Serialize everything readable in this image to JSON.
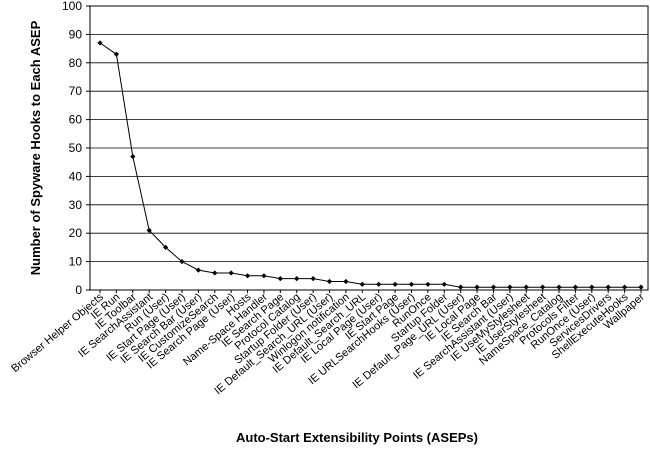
{
  "chart_data": {
    "type": "line",
    "title": "",
    "xlabel": "Auto-Start Extensibility Points (ASEPs)",
    "ylabel": "Number of Spyware Hooks to Each ASEP",
    "ylim": [
      0,
      100
    ],
    "yticks": [
      0,
      10,
      20,
      30,
      40,
      50,
      60,
      70,
      80,
      90,
      100
    ],
    "grid": "y-major",
    "legend": "none",
    "categories": [
      "Browser Helper Objects",
      "IE Run",
      "IE Toolbar",
      "IE SearchAssistant",
      "Run (User)",
      "IE Start Page (User)",
      "IE Search Bar (User)",
      "IE CustomizeSearch",
      "IE Search Page (User)",
      "Hosts",
      "Name-Space Handler",
      "IE Search Page",
      "Protocol Catalog",
      "Startup Folder (User)",
      "IE Default_Search_URL (User)",
      "Winlogon notification",
      "IE Default_Search_URL",
      "IE Local Page (User)",
      "IE Start Page",
      "IE URLSearchHooks (User)",
      "RunOnce",
      "Startup Folder",
      "IE Default_Page_URL (User)",
      "IE Local Page",
      "IE Search Bar",
      "IE SearchAssistant (User)",
      "IE UseMyStylesheet",
      "IE UserStylesheet",
      "NameSpace_Catalog",
      "Protocols Filter",
      "RunOnce (User)",
      "ServicesDrivers",
      "ShellExecuteHooks",
      "Wallpaper"
    ],
    "values": [
      87,
      83,
      47,
      21,
      15,
      10,
      7,
      6,
      6,
      5,
      5,
      4,
      4,
      4,
      3,
      3,
      2,
      2,
      2,
      2,
      2,
      2,
      1,
      1,
      1,
      1,
      1,
      1,
      1,
      1,
      1,
      1,
      1,
      1
    ],
    "style": {
      "line_color": "#000000",
      "marker_color": "#000000",
      "grid_color": "#000000",
      "background": "#ffffff"
    }
  }
}
